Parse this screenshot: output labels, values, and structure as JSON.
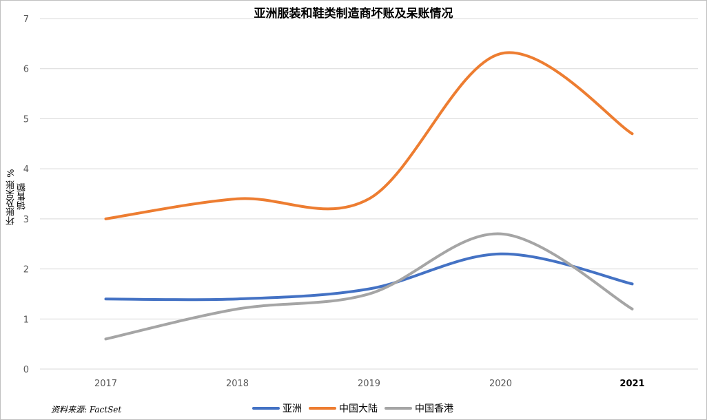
{
  "title": "亚洲服装和鞋类制造商坏账及呆账情况",
  "ylabel_line1": "坏账及呆账 %",
  "ylabel_line2": "销售额",
  "source": "资料来源:  FactSet",
  "colors": {
    "asia": "#4472C4",
    "mainland": "#ED7D31",
    "hongkong": "#A5A5A5",
    "grid": "#D9D9D9"
  },
  "chart_data": {
    "type": "line",
    "title": "亚洲服装和鞋类制造商坏账及呆账情况",
    "xlabel": "",
    "ylabel": "坏账及呆账 % 销售额",
    "categories": [
      "2017",
      "2018",
      "2019",
      "2020",
      "2021"
    ],
    "ylim": [
      0,
      7
    ],
    "yticks": [
      0,
      1,
      2,
      3,
      4,
      5,
      6,
      7
    ],
    "grid": true,
    "legend": "bottom",
    "smooth": true,
    "series": [
      {
        "name": "亚洲",
        "color": "#4472C4",
        "values": [
          1.4,
          1.4,
          1.6,
          2.3,
          1.7
        ]
      },
      {
        "name": "中国大陆",
        "color": "#ED7D31",
        "values": [
          3.0,
          3.4,
          3.4,
          6.3,
          4.7
        ]
      },
      {
        "name": "中国香港",
        "color": "#A5A5A5",
        "values": [
          0.6,
          1.2,
          1.5,
          2.7,
          1.2
        ]
      }
    ]
  }
}
